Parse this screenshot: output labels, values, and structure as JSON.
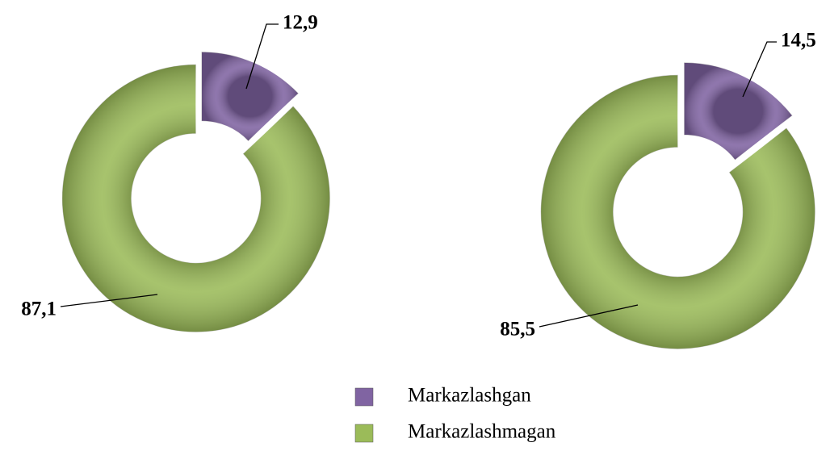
{
  "chart_data": [
    {
      "type": "pie",
      "values": [
        12.9,
        87.1
      ],
      "value_labels": [
        "12,9",
        "87,1"
      ]
    },
    {
      "type": "pie",
      "values": [
        14.5,
        85.5
      ],
      "value_labels": [
        "14,5",
        "85,5"
      ]
    }
  ],
  "legend": {
    "labels": [
      "Markazlashgan",
      "Markazlashmagan"
    ],
    "colors": [
      "#8064a2",
      "#9bbb59"
    ]
  }
}
